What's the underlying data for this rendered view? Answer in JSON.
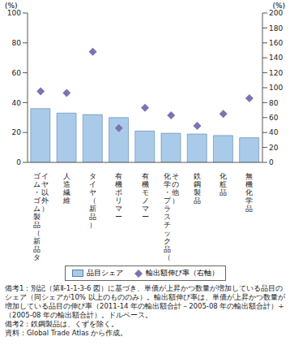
{
  "chart_data": {
    "type": "bar",
    "ylabel": "(%)",
    "y2label": "(%)",
    "categories": [
      "ゴム・ゴム製品（新品タイヤ以外）",
      "人造繊維",
      "タイヤ（新品）",
      "有機ポリマー",
      "有機モノマー",
      "化学・プラスチック品（その他）",
      "鉄鋼製品",
      "化粧品",
      "無機化学品"
    ],
    "series": [
      {
        "name": "品目シェア",
        "type": "bar",
        "color": "#a9cbe9",
        "values": [
          36,
          33,
          32,
          30,
          21,
          19.5,
          19,
          18,
          16.5
        ]
      },
      {
        "name": "輸出額伸び率（右軸）",
        "type": "scatter",
        "marker": "diamond",
        "axis": "y2",
        "color": "#7e72b4",
        "values": [
          95,
          93,
          148,
          46,
          73,
          63,
          49,
          65,
          86
        ]
      }
    ],
    "ylim": [
      0,
      100
    ],
    "yticks": [
      0,
      20,
      40,
      60,
      80,
      100
    ],
    "y2lim": [
      0,
      200
    ],
    "y2ticks": [
      0,
      20,
      40,
      60,
      80,
      100,
      120,
      140,
      160,
      180,
      200
    ],
    "grid": false,
    "annotations": [
      "備考1：別記（第Ⅱ-1-1-3-6 図）に基づき、単価が上昇かつ数量が増加している品目のシェア（同シェアが10% 以上のもののみ）。輸出額伸び率は、単価が上昇かつ数量が増加している品目の伸び率（2011-14 年の輸出額合計－2005-08 年の輸出額合計）÷（2005-08 年の輸出額合計）。ドルベース。",
      "備考2：鉄鋼製品は、くずを除く。",
      "資料：Global Trade Atlas から作成。"
    ]
  }
}
